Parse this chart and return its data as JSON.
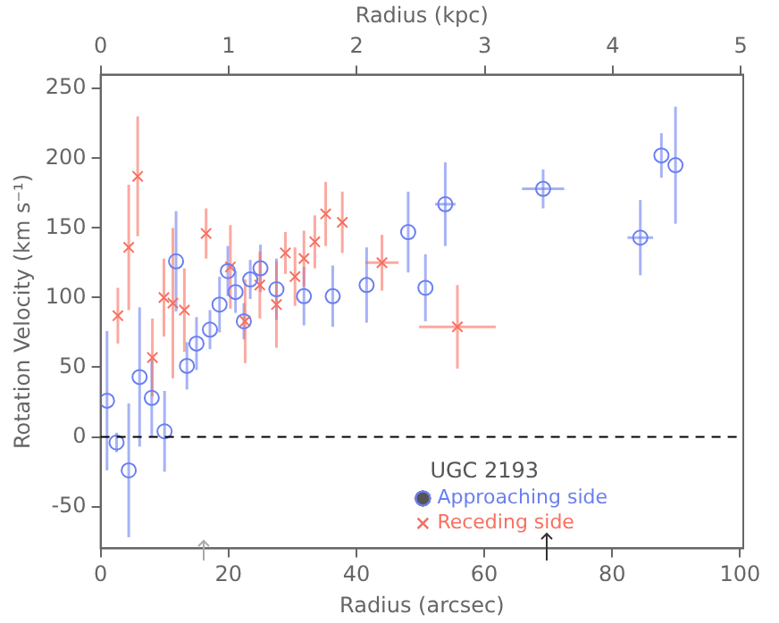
{
  "chart_data": {
    "type": "scatter",
    "xlabel": "Radius (arcsec)",
    "ylabel": "Rotation Velocity (km s⁻¹)",
    "x2label": "Radius (kpc)",
    "xlim": [
      0,
      100.5
    ],
    "xticks": [
      0,
      20,
      40,
      60,
      80,
      100
    ],
    "x2lim": [
      0,
      5.02
    ],
    "x2ticks": [
      0,
      1,
      2,
      3,
      4,
      5
    ],
    "ylim": [
      -80,
      260
    ],
    "yticks": [
      -50,
      0,
      50,
      100,
      150,
      200,
      250
    ],
    "grid": false,
    "legend": "bottom right",
    "legend_title": "UGC 2193",
    "ref_lines": [
      {
        "axis": "y",
        "value": 0,
        "color": "#000000",
        "line_style": "dashed"
      }
    ],
    "series": [
      {
        "name": "Approaching side",
        "color": "#6a7ff0",
        "marker": "circle",
        "x": [
          1,
          2.5,
          4.4,
          6.1,
          8,
          10,
          11.8,
          13.5,
          15,
          17.1,
          18.6,
          19.9,
          21.1,
          22.4,
          23.4,
          25,
          27.5,
          31.8,
          36.3,
          41.6,
          48.1,
          50.8,
          53.9,
          69.2,
          84.4,
          87.7,
          89.9
        ],
        "values": [
          26,
          -4,
          -24,
          43,
          28,
          4,
          126,
          51,
          67,
          77,
          95,
          119,
          104,
          83,
          113,
          121,
          106,
          101,
          101,
          109,
          147,
          107,
          167,
          178,
          143,
          202,
          195
        ],
        "errors": [
          50,
          7,
          48,
          50,
          28,
          29,
          36,
          17,
          19,
          14,
          20,
          18,
          15,
          13,
          14,
          17,
          22,
          21,
          22,
          27,
          29,
          24,
          30,
          14,
          27,
          16,
          42
        ],
        "xerrors": [
          null,
          null,
          null,
          null,
          null,
          null,
          null,
          null,
          null,
          null,
          null,
          null,
          null,
          null,
          null,
          null,
          null,
          null,
          null,
          null,
          null,
          null,
          1.6,
          3.3,
          2,
          null,
          null
        ]
      },
      {
        "name": "Receding side",
        "color": "#f87060",
        "marker": "cross",
        "x": [
          2.7,
          4.4,
          5.8,
          8.1,
          9.9,
          11.3,
          13.1,
          16.5,
          20.3,
          22.6,
          24.9,
          27.5,
          28.9,
          30.4,
          31.8,
          33.5,
          35.2,
          37.8,
          44,
          55.8
        ],
        "values": [
          87,
          136,
          187,
          57,
          100,
          96,
          91,
          146,
          122,
          83,
          109,
          95,
          132,
          115,
          128,
          140,
          160,
          154,
          125,
          79
        ],
        "errors": [
          20,
          45,
          43,
          28,
          28,
          54,
          30,
          18,
          30,
          30,
          24,
          31,
          15,
          21,
          20,
          19,
          23,
          22,
          20,
          30
        ],
        "xerrors": [
          null,
          null,
          null,
          null,
          null,
          null,
          null,
          null,
          null,
          null,
          null,
          null,
          null,
          null,
          null,
          null,
          null,
          null,
          2.6,
          6
        ]
      }
    ]
  }
}
